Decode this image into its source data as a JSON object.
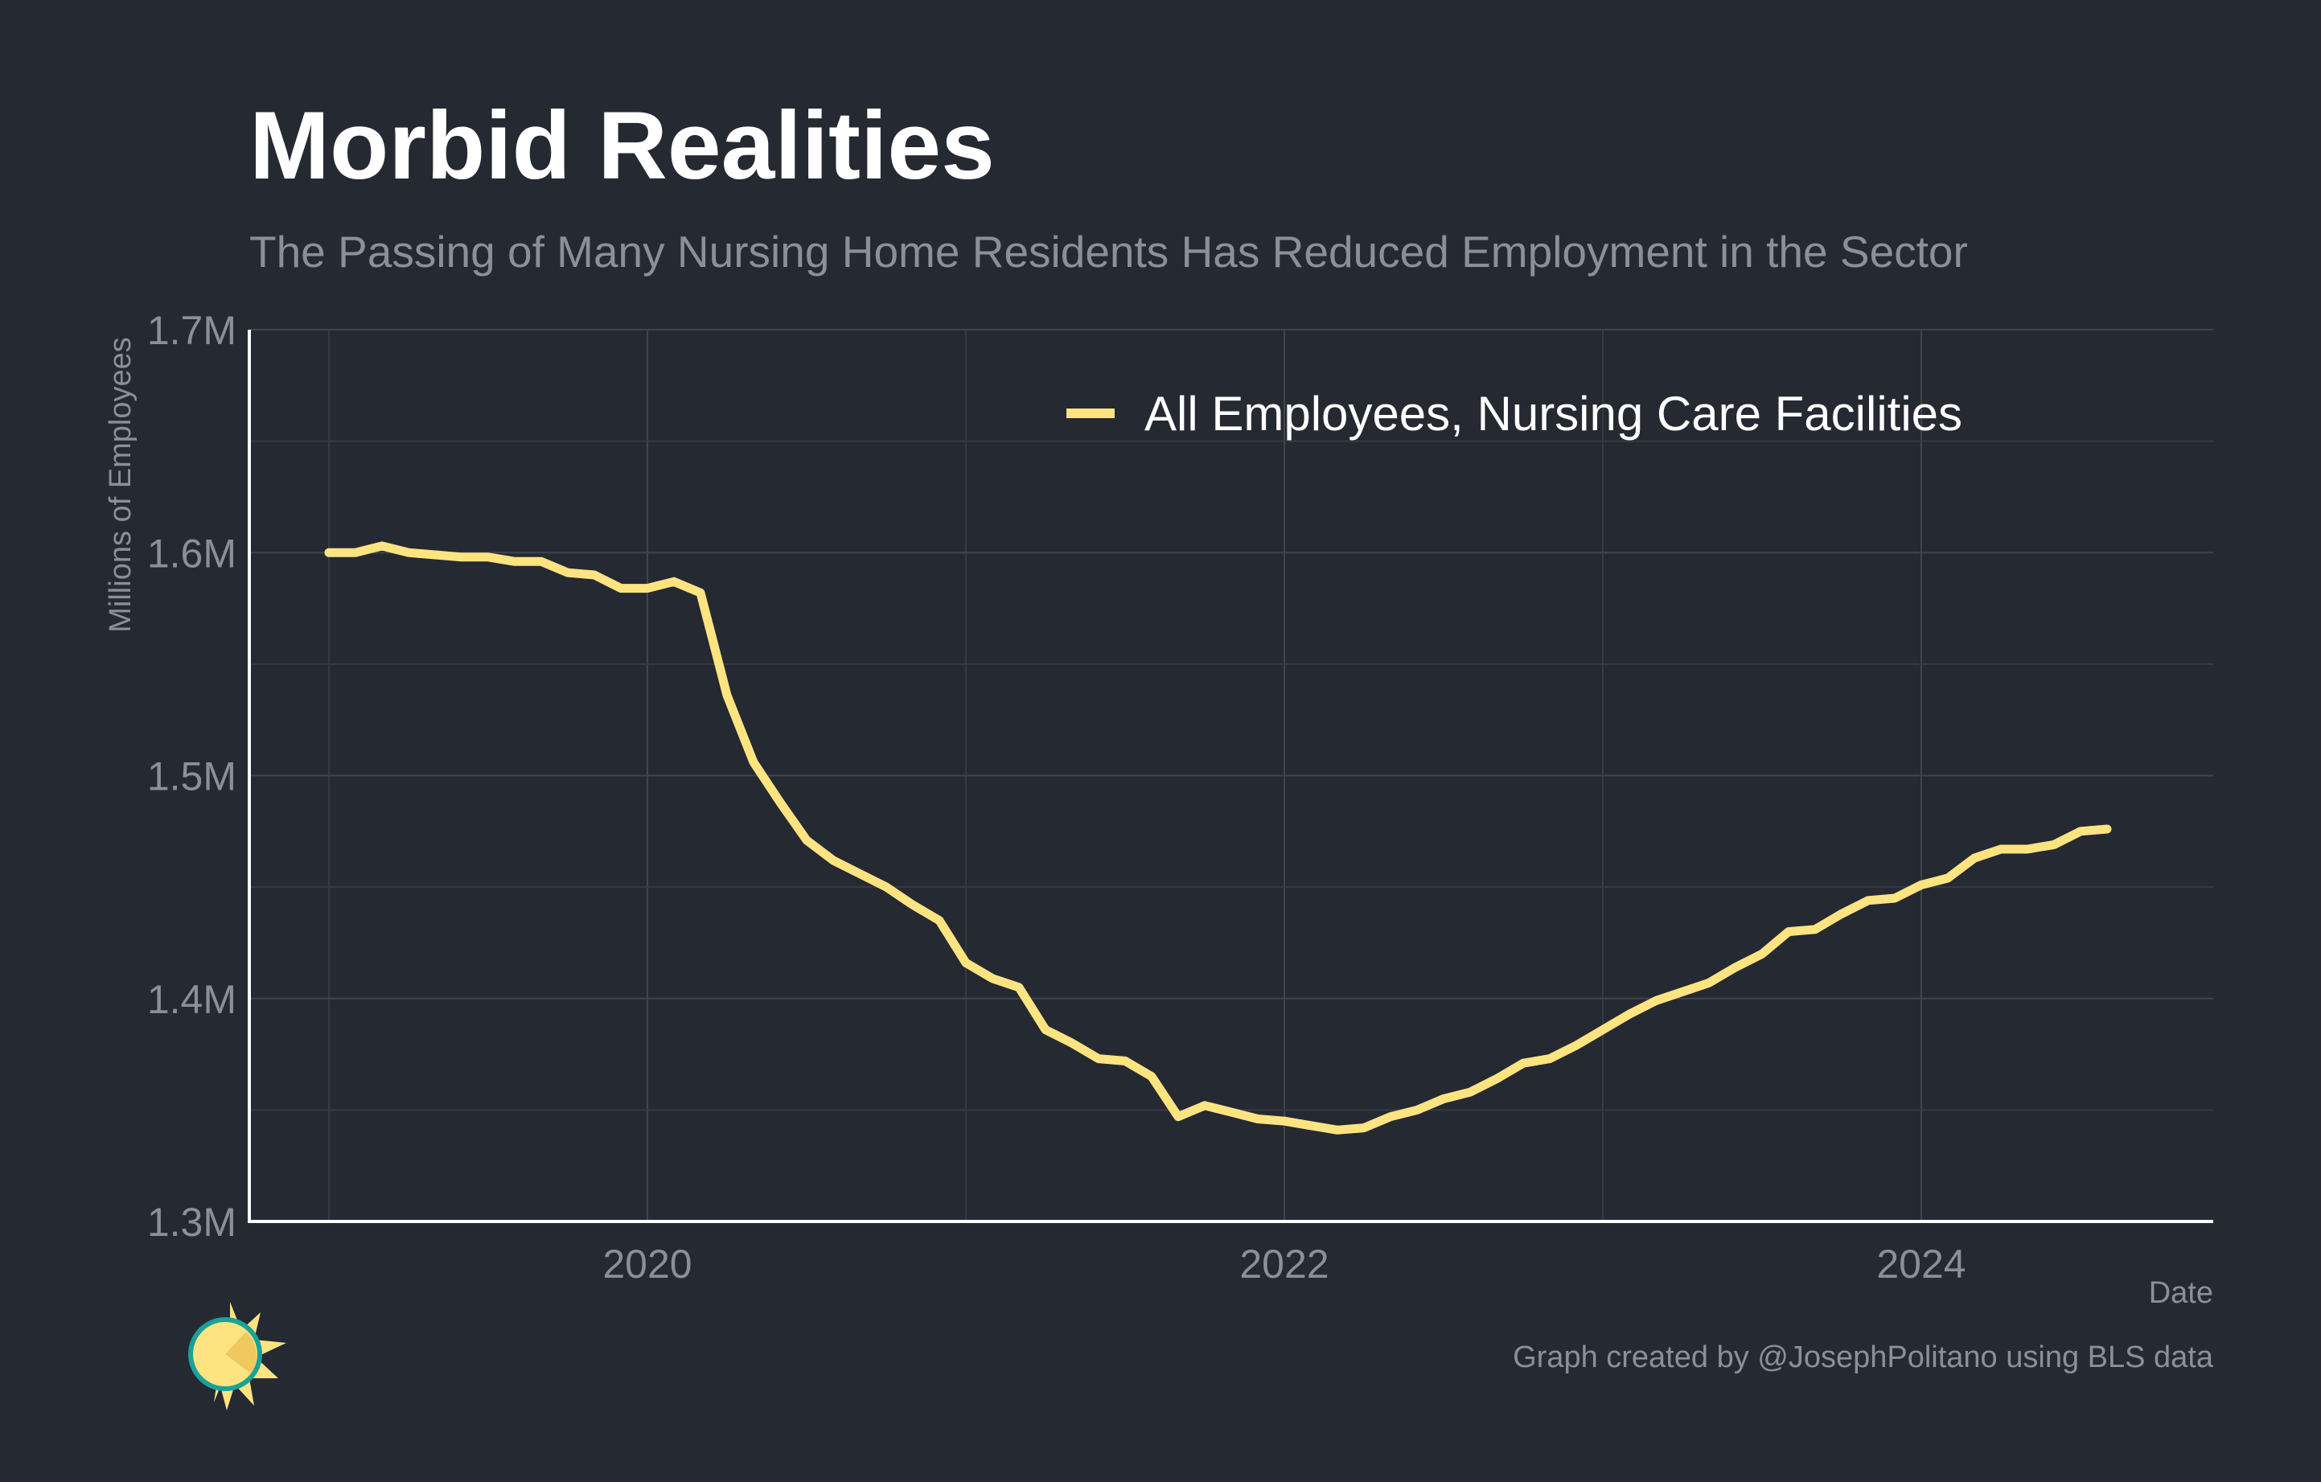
{
  "colors": {
    "background": "#252932",
    "series": "#fde481",
    "text": "#ffffff",
    "muted_text": "#8c8f96",
    "grid": "#40444c",
    "logo_sun": "#fde481",
    "logo_ring": "#1aa198"
  },
  "logo": {
    "icon": "sun-logo-icon"
  },
  "caption": "Graph created by @JosephPolitano using BLS data",
  "chart_data": {
    "type": "line",
    "title": "Morbid Realities",
    "subtitle": "The Passing of Many Nursing Home Residents Has Reduced Employment in the Sector",
    "xlabel": "Date",
    "ylabel": "Millions of Employees",
    "ylim": [
      1.3,
      1.7
    ],
    "xlim": [
      "2018-10",
      "2024-12"
    ],
    "y_ticks": [
      1.3,
      1.4,
      1.5,
      1.6,
      1.7
    ],
    "y_tick_labels": [
      "1.3M",
      "1.4M",
      "1.5M",
      "1.6M",
      "1.7M"
    ],
    "x_ticks": [
      "2020",
      "2022",
      "2024"
    ],
    "grid": true,
    "legend_position": "top-right",
    "series": [
      {
        "name": "All Employees, Nursing Care Facilities",
        "color": "#fde481",
        "x": [
          "2019-01",
          "2019-02",
          "2019-03",
          "2019-04",
          "2019-05",
          "2019-06",
          "2019-07",
          "2019-08",
          "2019-09",
          "2019-10",
          "2019-11",
          "2019-12",
          "2020-01",
          "2020-02",
          "2020-03",
          "2020-04",
          "2020-05",
          "2020-06",
          "2020-07",
          "2020-08",
          "2020-09",
          "2020-10",
          "2020-11",
          "2020-12",
          "2021-01",
          "2021-02",
          "2021-03",
          "2021-04",
          "2021-05",
          "2021-06",
          "2021-07",
          "2021-08",
          "2021-09",
          "2021-10",
          "2021-11",
          "2021-12",
          "2022-01",
          "2022-02",
          "2022-03",
          "2022-04",
          "2022-05",
          "2022-06",
          "2022-07",
          "2022-08",
          "2022-09",
          "2022-10",
          "2022-11",
          "2022-12",
          "2023-01",
          "2023-02",
          "2023-03",
          "2023-04",
          "2023-05",
          "2023-06",
          "2023-07",
          "2023-08",
          "2023-09",
          "2023-10",
          "2023-11",
          "2023-12",
          "2024-01",
          "2024-02",
          "2024-03",
          "2024-04",
          "2024-05",
          "2024-06",
          "2024-07",
          "2024-08"
        ],
        "values": [
          1.6,
          1.6,
          1.603,
          1.6,
          1.599,
          1.598,
          1.598,
          1.596,
          1.596,
          1.591,
          1.59,
          1.584,
          1.584,
          1.587,
          1.582,
          1.536,
          1.506,
          1.488,
          1.471,
          1.462,
          1.456,
          1.45,
          1.442,
          1.435,
          1.416,
          1.409,
          1.405,
          1.386,
          1.38,
          1.373,
          1.372,
          1.365,
          1.347,
          1.352,
          1.349,
          1.346,
          1.345,
          1.343,
          1.341,
          1.342,
          1.347,
          1.35,
          1.355,
          1.358,
          1.364,
          1.371,
          1.373,
          1.379,
          1.386,
          1.393,
          1.399,
          1.403,
          1.407,
          1.414,
          1.42,
          1.43,
          1.431,
          1.438,
          1.444,
          1.445,
          1.451,
          1.454,
          1.463,
          1.467,
          1.467,
          1.469,
          1.475,
          1.476
        ]
      }
    ]
  }
}
